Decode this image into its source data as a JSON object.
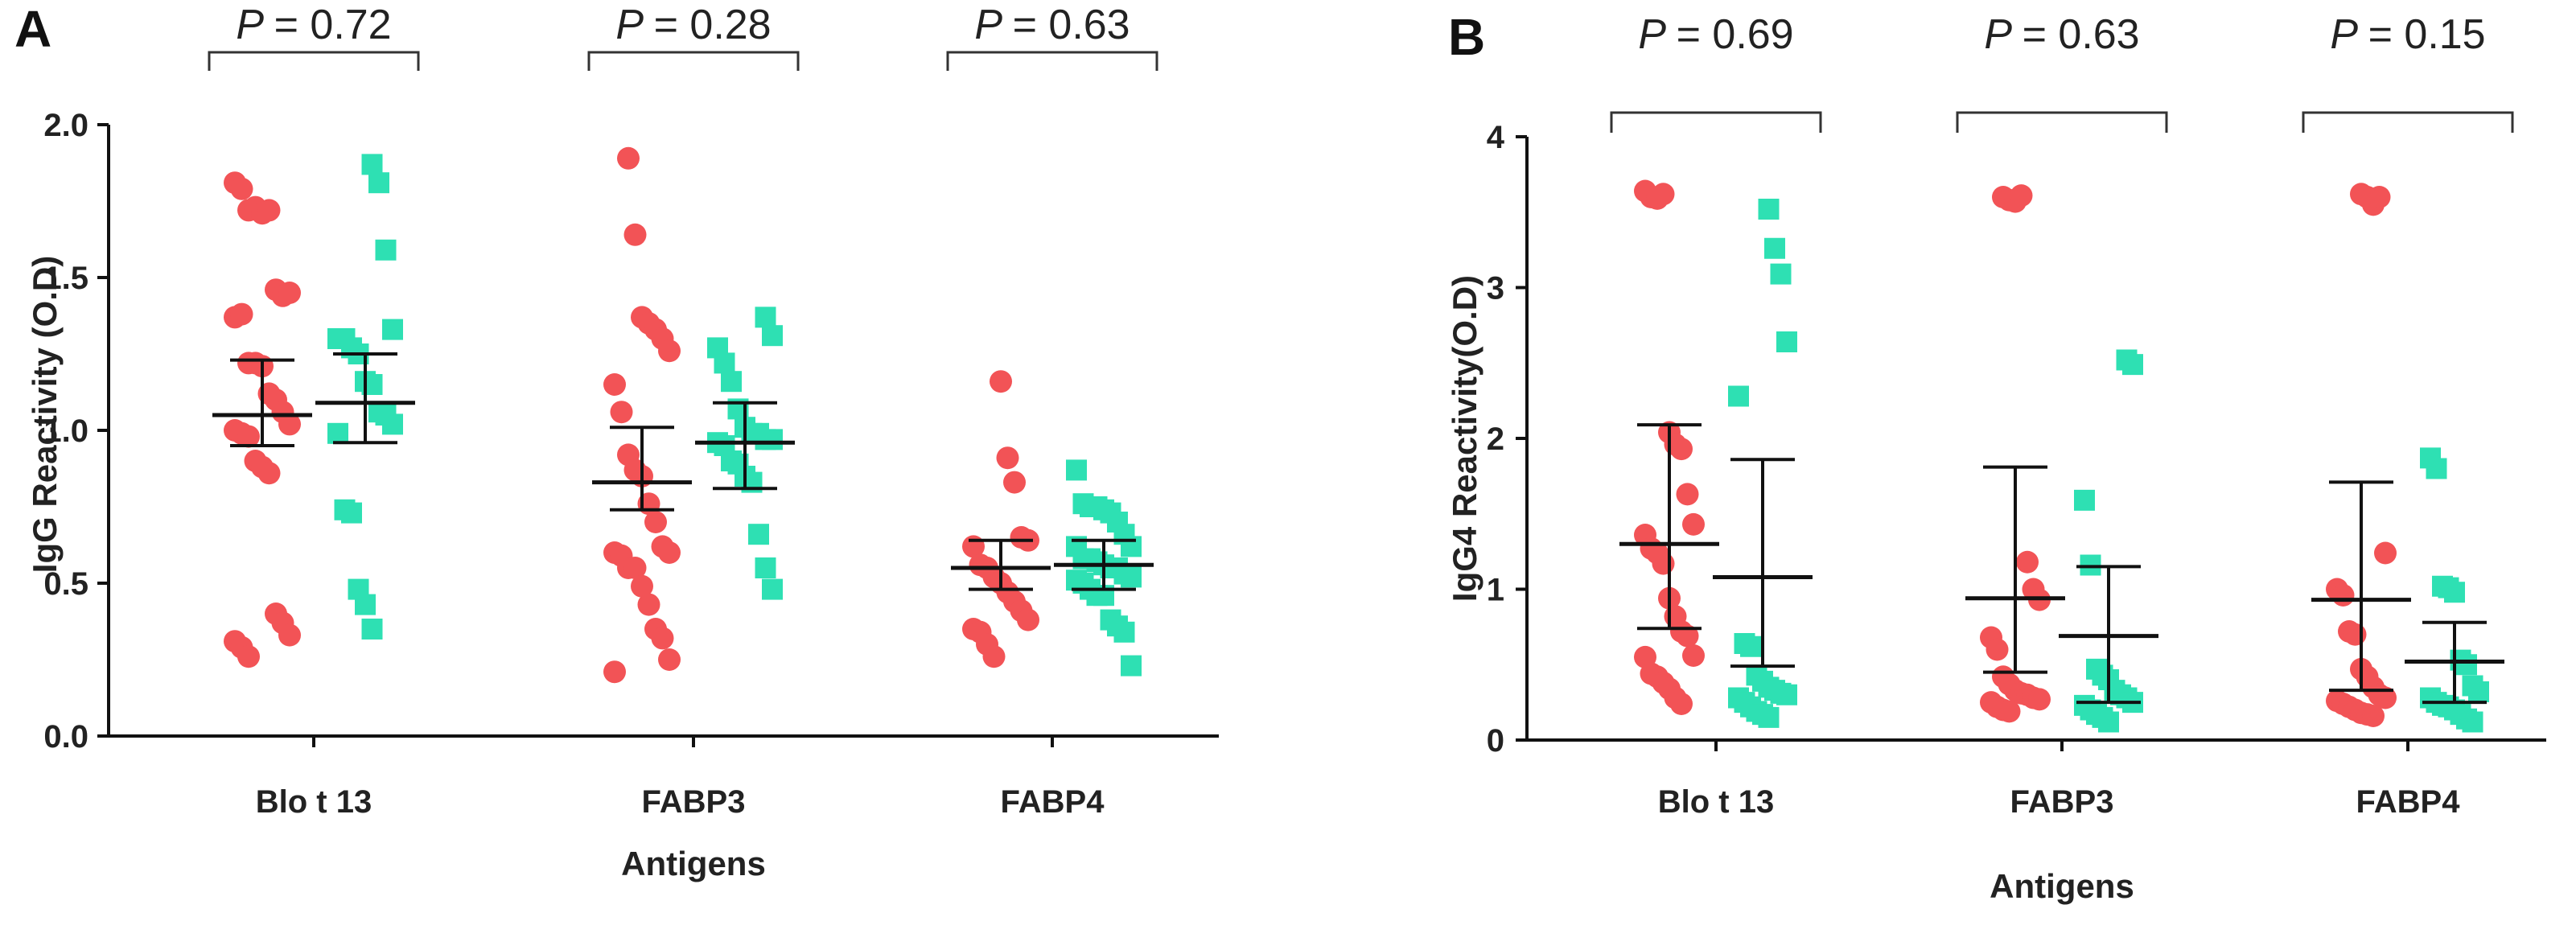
{
  "chart_data": [
    {
      "type": "scatter",
      "panel_label": "A",
      "ylabel": "IgG Reactivity (O.D)",
      "xlabel": "Antigens",
      "ylim": [
        0,
        2.0
      ],
      "yticks": [
        "0.0",
        "0.5",
        "1.0",
        "1.5",
        "2.0"
      ],
      "ytick_values": [
        0,
        0.5,
        1.0,
        1.5,
        2.0
      ],
      "colors": {
        "series1": "#f25356",
        "series2": "#2ee0b3",
        "line": "#111111"
      },
      "groups": [
        {
          "label": "Blo t 13",
          "p_value_text": "= 0.72",
          "series": [
            {
              "name": "group1",
              "marker": "circle",
              "mean": 1.05,
              "err_low": 0.95,
              "err_high": 1.23,
              "values": [
                1.81,
                1.79,
                1.72,
                1.73,
                1.71,
                1.72,
                1.46,
                1.44,
                1.45,
                1.37,
                1.38,
                1.22,
                1.22,
                1.21,
                1.12,
                1.1,
                1.06,
                1.02,
                1.0,
                0.99,
                0.98,
                0.9,
                0.88,
                0.86,
                0.4,
                0.37,
                0.33,
                0.31,
                0.29,
                0.26
              ]
            },
            {
              "name": "group2",
              "marker": "square",
              "mean": 1.09,
              "err_low": 0.96,
              "err_high": 1.25,
              "values": [
                1.87,
                1.81,
                1.59,
                1.33,
                1.3,
                1.3,
                1.27,
                1.25,
                1.16,
                1.15,
                1.06,
                1.05,
                1.02,
                0.99,
                0.74,
                0.73,
                0.48,
                0.43,
                0.35
              ]
            }
          ]
        },
        {
          "label": "FABP3",
          "p_value_text": "= 0.28",
          "series": [
            {
              "name": "group1",
              "marker": "circle",
              "mean": 0.83,
              "err_low": 0.74,
              "err_high": 1.01,
              "values": [
                1.89,
                1.64,
                1.37,
                1.35,
                1.33,
                1.3,
                1.26,
                1.15,
                1.06,
                0.92,
                0.87,
                0.85,
                0.76,
                0.7,
                0.62,
                0.6,
                0.6,
                0.59,
                0.55,
                0.55,
                0.49,
                0.43,
                0.35,
                0.32,
                0.25,
                0.21
              ]
            },
            {
              "name": "group2",
              "marker": "square",
              "mean": 0.96,
              "err_low": 0.81,
              "err_high": 1.09,
              "values": [
                1.37,
                1.31,
                1.27,
                1.22,
                1.16,
                1.07,
                1.01,
                0.99,
                0.99,
                0.97,
                0.97,
                0.96,
                0.95,
                0.9,
                0.89,
                0.85,
                0.83,
                0.66,
                0.55,
                0.48
              ]
            }
          ]
        },
        {
          "label": "FABP4",
          "p_value_text": "= 0.63",
          "series": [
            {
              "name": "group1",
              "marker": "circle",
              "mean": 0.55,
              "err_low": 0.48,
              "err_high": 0.64,
              "values": [
                1.16,
                0.91,
                0.83,
                0.65,
                0.64,
                0.62,
                0.56,
                0.55,
                0.52,
                0.5,
                0.47,
                0.44,
                0.41,
                0.38,
                0.35,
                0.34,
                0.3,
                0.26
              ]
            },
            {
              "name": "group2",
              "marker": "square",
              "mean": 0.56,
              "err_low": 0.48,
              "err_high": 0.64,
              "values": [
                0.87,
                0.76,
                0.75,
                0.75,
                0.74,
                0.73,
                0.7,
                0.66,
                0.62,
                0.62,
                0.58,
                0.58,
                0.57,
                0.56,
                0.55,
                0.55,
                0.53,
                0.52,
                0.51,
                0.5,
                0.48,
                0.46,
                0.46,
                0.38,
                0.36,
                0.34,
                0.23
              ]
            }
          ]
        }
      ]
    },
    {
      "type": "scatter",
      "panel_label": "B",
      "ylabel": "IgG4 Reactivity(O.D)",
      "xlabel": "Antigens",
      "ylim": [
        0,
        4
      ],
      "yticks": [
        "0",
        "1",
        "2",
        "3",
        "4"
      ],
      "ytick_values": [
        0,
        1,
        2,
        3,
        4
      ],
      "colors": {
        "series1": "#f25356",
        "series2": "#2ee0b3",
        "line": "#111111"
      },
      "groups": [
        {
          "label": "Blo t 13",
          "p_value_text": "= 0.69",
          "series": [
            {
              "name": "group1",
              "marker": "circle",
              "mean": 1.3,
              "err_low": 0.74,
              "err_high": 2.09,
              "values": [
                3.64,
                3.6,
                3.59,
                3.62,
                2.04,
                1.96,
                1.93,
                1.63,
                1.43,
                1.36,
                1.27,
                1.24,
                1.17,
                0.94,
                0.82,
                0.72,
                0.69,
                0.56,
                0.55,
                0.44,
                0.42,
                0.38,
                0.34,
                0.28,
                0.24
              ]
            },
            {
              "name": "group2",
              "marker": "square",
              "mean": 1.08,
              "err_low": 0.49,
              "err_high": 1.86,
              "values": [
                3.52,
                3.26,
                3.09,
                2.64,
                2.28,
                0.64,
                0.62,
                0.43,
                0.39,
                0.35,
                0.33,
                0.31,
                0.3,
                0.28,
                0.25,
                0.22,
                0.19,
                0.17,
                0.15
              ]
            }
          ]
        },
        {
          "label": "FABP3",
          "p_value_text": "= 0.63",
          "series": [
            {
              "name": "group1",
              "marker": "circle",
              "mean": 0.94,
              "err_low": 0.45,
              "err_high": 1.81,
              "values": [
                3.6,
                3.58,
                3.57,
                3.61,
                1.18,
                1.0,
                0.93,
                0.68,
                0.6,
                0.42,
                0.37,
                0.33,
                0.31,
                0.3,
                0.28,
                0.27,
                0.25,
                0.22,
                0.2,
                0.19
              ]
            },
            {
              "name": "group2",
              "marker": "square",
              "mean": 0.69,
              "err_low": 0.25,
              "err_high": 1.15,
              "values": [
                2.52,
                2.49,
                1.59,
                1.16,
                0.47,
                0.43,
                0.4,
                0.33,
                0.3,
                0.28,
                0.25,
                0.23,
                0.2,
                0.17,
                0.15,
                0.12
              ]
            }
          ]
        },
        {
          "label": "FABP4",
          "p_value_text": "= 0.15",
          "series": [
            {
              "name": "group1",
              "marker": "circle",
              "mean": 0.93,
              "err_low": 0.33,
              "err_high": 1.71,
              "values": [
                3.62,
                3.6,
                3.55,
                3.6,
                1.24,
                1.0,
                0.96,
                0.72,
                0.7,
                0.47,
                0.42,
                0.35,
                0.3,
                0.28,
                0.26,
                0.24,
                0.22,
                0.2,
                0.18,
                0.17,
                0.16
              ]
            },
            {
              "name": "group2",
              "marker": "square",
              "mean": 0.52,
              "err_low": 0.25,
              "err_high": 0.78,
              "values": [
                1.87,
                1.8,
                1.02,
                1.01,
                0.98,
                0.53,
                0.5,
                0.36,
                0.32,
                0.28,
                0.25,
                0.23,
                0.22,
                0.2,
                0.17,
                0.14,
                0.12
              ]
            }
          ]
        }
      ]
    }
  ]
}
